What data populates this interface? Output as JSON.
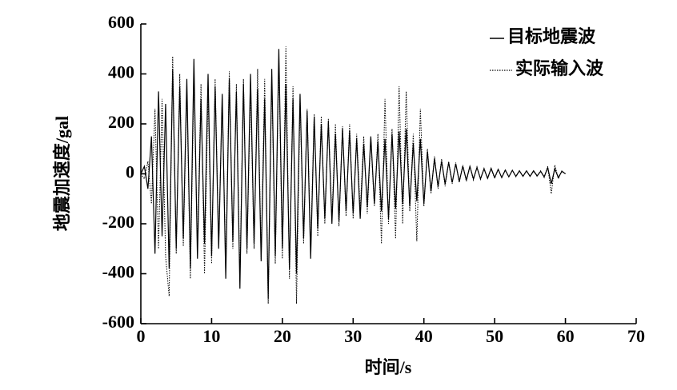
{
  "chart_data": {
    "type": "line",
    "xlabel": "时间/s",
    "ylabel": "地震加速度/gal",
    "xlim": [
      0,
      70
    ],
    "xticks": [
      0,
      10,
      20,
      30,
      40,
      50,
      60,
      70
    ],
    "ylim": [
      -600,
      600
    ],
    "yticks": [
      -600,
      -400,
      -200,
      0,
      200,
      400,
      600
    ],
    "legend": "upper right",
    "x": [
      0,
      0.5,
      1,
      1.5,
      2,
      2.5,
      3,
      3.5,
      4,
      4.5,
      5,
      5.5,
      6,
      6.5,
      7,
      7.5,
      8,
      8.5,
      9,
      9.5,
      10,
      10.5,
      11,
      11.5,
      12,
      12.5,
      13,
      13.5,
      14,
      14.5,
      15,
      15.5,
      16,
      16.5,
      17,
      17.5,
      18,
      18.5,
      19,
      19.5,
      20,
      20.5,
      21,
      21.5,
      22,
      22.5,
      23,
      23.5,
      24,
      24.5,
      25,
      25.5,
      26,
      26.5,
      27,
      27.5,
      28,
      28.5,
      29,
      29.5,
      30,
      30.5,
      31,
      31.5,
      32,
      32.5,
      33,
      33.5,
      34,
      34.5,
      35,
      35.5,
      36,
      36.5,
      37,
      37.5,
      38,
      38.5,
      39,
      39.5,
      40,
      40.5,
      41,
      41.5,
      42,
      42.5,
      43,
      43.5,
      44,
      44.5,
      45,
      45.5,
      46,
      46.5,
      47,
      47.5,
      48,
      48.5,
      49,
      49.5,
      50,
      50.5,
      51,
      51.5,
      52,
      52.5,
      53,
      53.5,
      54,
      54.5,
      55,
      55.5,
      56,
      56.5,
      57,
      57.5,
      58,
      58.5,
      59,
      59.5,
      60
    ],
    "series": [
      {
        "name": "目标地震波",
        "color": "#000000",
        "style": "solid",
        "values": [
          0,
          30,
          -60,
          150,
          -320,
          330,
          -250,
          280,
          -380,
          420,
          -300,
          350,
          -260,
          380,
          -380,
          460,
          -340,
          300,
          -280,
          400,
          -330,
          350,
          -300,
          320,
          -420,
          380,
          -270,
          330,
          -460,
          360,
          -300,
          400,
          -280,
          340,
          -350,
          300,
          -500,
          420,
          -330,
          500,
          -300,
          360,
          -380,
          300,
          -400,
          320,
          -260,
          250,
          -340,
          230,
          -220,
          200,
          -180,
          210,
          -200,
          160,
          -190,
          180,
          -150,
          170,
          -160,
          140,
          -180,
          120,
          -130,
          150,
          -120,
          130,
          -150,
          140,
          -180,
          160,
          -140,
          170,
          -120,
          180,
          -130,
          120,
          -110,
          140,
          -120,
          90,
          -70,
          60,
          -50,
          50,
          -40,
          45,
          -35,
          40,
          -30,
          30,
          -25,
          30,
          -20,
          25,
          -20,
          20,
          -18,
          22,
          -15,
          18,
          -15,
          15,
          -12,
          14,
          -10,
          12,
          -10,
          12,
          -10,
          12,
          -8,
          10,
          -12,
          25,
          -40,
          20,
          -15,
          10,
          0
        ]
      },
      {
        "name": "实际输入波",
        "color": "#000000",
        "style": "dotted",
        "values": [
          0,
          -20,
          50,
          -120,
          260,
          -300,
          300,
          -330,
          -490,
          470,
          -320,
          400,
          -290,
          340,
          -420,
          380,
          -300,
          360,
          -400,
          330,
          -360,
          380,
          -280,
          300,
          -380,
          410,
          -300,
          360,
          -420,
          380,
          -320,
          350,
          -300,
          420,
          -340,
          380,
          -520,
          390,
          -360,
          460,
          -340,
          510,
          -420,
          350,
          -520,
          300,
          -280,
          260,
          -300,
          240,
          -250,
          230,
          -200,
          220,
          -180,
          200,
          -210,
          190,
          -170,
          200,
          -180,
          160,
          -150,
          150,
          -160,
          140,
          -130,
          160,
          -280,
          300,
          -200,
          180,
          -260,
          350,
          -200,
          330,
          -150,
          160,
          -270,
          260,
          -130,
          100,
          -80,
          70,
          -60,
          60,
          -50,
          50,
          -40,
          45,
          -35,
          35,
          -30,
          30,
          -25,
          28,
          -22,
          22,
          -20,
          20,
          -18,
          18,
          -15,
          16,
          -12,
          14,
          -12,
          12,
          -10,
          12,
          -10,
          10,
          -10,
          12,
          -15,
          30,
          -80,
          35,
          -20,
          12,
          0
        ]
      }
    ]
  }
}
